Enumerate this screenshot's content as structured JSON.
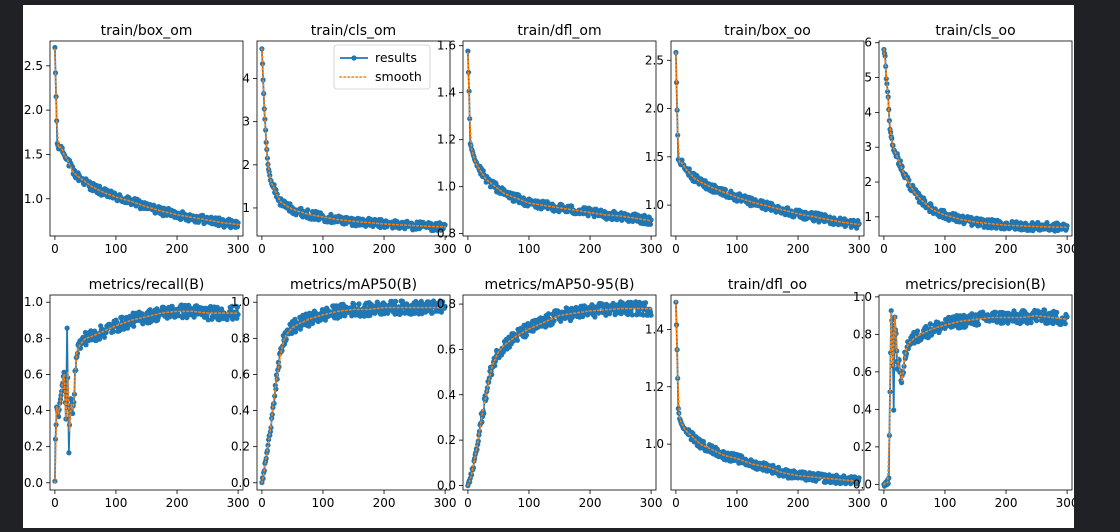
{
  "chart_data": {
    "type": "line",
    "legend": {
      "entries": [
        {
          "name": "results",
          "color": "#1f77b4",
          "style": "solid line with dot markers"
        },
        {
          "name": "smooth",
          "color": "#ff7f0e",
          "style": "dotted line"
        }
      ],
      "placement": "top-right of train/cls_om"
    },
    "colors": {
      "results": "#1f77b4",
      "smooth": "#ff7f0e"
    },
    "subplots": [
      {
        "id": "box_om",
        "title": "train/box_om",
        "xlim": [
          -8,
          308
        ],
        "ylim": [
          0.58,
          2.78
        ],
        "xticks": [
          0,
          100,
          200,
          300
        ],
        "yticks": [
          1.0,
          1.5,
          2.0,
          2.5
        ],
        "ytick_labels": [
          "1.0",
          "1.5",
          "2.0",
          "2.5"
        ],
        "points": [
          [
            0,
            2.69
          ],
          [
            2,
            2.15
          ],
          [
            4,
            1.62
          ],
          [
            7,
            1.55
          ],
          [
            10,
            1.6
          ],
          [
            15,
            1.5
          ],
          [
            20,
            1.45
          ],
          [
            30,
            1.3
          ],
          [
            40,
            1.24
          ],
          [
            50,
            1.19
          ],
          [
            60,
            1.14
          ],
          [
            80,
            1.07
          ],
          [
            100,
            1.02
          ],
          [
            125,
            0.97
          ],
          [
            150,
            0.91
          ],
          [
            175,
            0.86
          ],
          [
            200,
            0.82
          ],
          [
            225,
            0.79
          ],
          [
            250,
            0.76
          ],
          [
            275,
            0.73
          ],
          [
            300,
            0.71
          ]
        ]
      },
      {
        "id": "cls_om",
        "title": "train/cls_om",
        "xlim": [
          -8,
          308
        ],
        "ylim": [
          0.35,
          4.87
        ],
        "xticks": [
          0,
          100,
          200,
          300
        ],
        "yticks": [
          1,
          2,
          3,
          4
        ],
        "ytick_labels": [
          "1",
          "2",
          "3",
          "4"
        ],
        "points": [
          [
            0,
            4.7
          ],
          [
            2,
            4.0
          ],
          [
            4,
            3.3
          ],
          [
            7,
            2.5
          ],
          [
            10,
            2.0
          ],
          [
            15,
            1.6
          ],
          [
            20,
            1.45
          ],
          [
            25,
            1.3
          ],
          [
            30,
            1.15
          ],
          [
            40,
            1.05
          ],
          [
            50,
            0.97
          ],
          [
            60,
            0.92
          ],
          [
            80,
            0.84
          ],
          [
            100,
            0.79
          ],
          [
            125,
            0.73
          ],
          [
            150,
            0.69
          ],
          [
            175,
            0.66
          ],
          [
            200,
            0.63
          ],
          [
            225,
            0.61
          ],
          [
            250,
            0.59
          ],
          [
            275,
            0.57
          ],
          [
            300,
            0.56
          ]
        ]
      },
      {
        "id": "dfl_om",
        "title": "train/dfl_om",
        "xlim": [
          -8,
          308
        ],
        "ylim": [
          0.79,
          1.62
        ],
        "xticks": [
          0,
          100,
          200,
          300
        ],
        "yticks": [
          0.8,
          1.0,
          1.2,
          1.4,
          1.6
        ],
        "ytick_labels": [
          "0.8",
          "1.0",
          "1.2",
          "1.4",
          "1.6"
        ],
        "points": [
          [
            0,
            1.57
          ],
          [
            2,
            1.4
          ],
          [
            4,
            1.18
          ],
          [
            7,
            1.15
          ],
          [
            10,
            1.12
          ],
          [
            15,
            1.09
          ],
          [
            20,
            1.07
          ],
          [
            30,
            1.03
          ],
          [
            40,
            1.01
          ],
          [
            50,
            0.99
          ],
          [
            60,
            0.97
          ],
          [
            80,
            0.95
          ],
          [
            100,
            0.93
          ],
          [
            125,
            0.92
          ],
          [
            150,
            0.91
          ],
          [
            175,
            0.9
          ],
          [
            200,
            0.89
          ],
          [
            225,
            0.88
          ],
          [
            250,
            0.875
          ],
          [
            275,
            0.865
          ],
          [
            300,
            0.855
          ]
        ]
      },
      {
        "id": "box_oo",
        "title": "train/box_oo",
        "xlim": [
          -8,
          308
        ],
        "ylim": [
          0.68,
          2.7
        ],
        "xticks": [
          0,
          100,
          200,
          300
        ],
        "yticks": [
          1.0,
          1.5,
          2.0,
          2.5
        ],
        "ytick_labels": [
          "1.0",
          "1.5",
          "2.0",
          "2.5"
        ],
        "points": [
          [
            0,
            2.58
          ],
          [
            2,
            1.98
          ],
          [
            4,
            1.48
          ],
          [
            7,
            1.42
          ],
          [
            10,
            1.45
          ],
          [
            15,
            1.38
          ],
          [
            20,
            1.35
          ],
          [
            30,
            1.28
          ],
          [
            40,
            1.24
          ],
          [
            50,
            1.21
          ],
          [
            60,
            1.18
          ],
          [
            80,
            1.13
          ],
          [
            100,
            1.08
          ],
          [
            125,
            1.03
          ],
          [
            150,
            0.99
          ],
          [
            175,
            0.95
          ],
          [
            200,
            0.91
          ],
          [
            225,
            0.88
          ],
          [
            250,
            0.85
          ],
          [
            275,
            0.82
          ],
          [
            300,
            0.8
          ]
        ]
      },
      {
        "id": "cls_oo",
        "title": "train/cls_oo",
        "xlim": [
          -8,
          308
        ],
        "ylim": [
          0.45,
          6.05
        ],
        "xticks": [
          0,
          100,
          200,
          300
        ],
        "yticks": [
          1,
          2,
          3,
          4,
          5,
          6
        ],
        "ytick_labels": [
          "1",
          "2",
          "3",
          "4",
          "5",
          "6"
        ],
        "points": [
          [
            0,
            5.82
          ],
          [
            2,
            5.6
          ],
          [
            4,
            5.0
          ],
          [
            7,
            4.4
          ],
          [
            10,
            3.5
          ],
          [
            15,
            3.0
          ],
          [
            20,
            2.8
          ],
          [
            25,
            2.6
          ],
          [
            30,
            2.35
          ],
          [
            40,
            2.0
          ],
          [
            50,
            1.7
          ],
          [
            60,
            1.5
          ],
          [
            80,
            1.2
          ],
          [
            100,
            1.05
          ],
          [
            125,
            0.93
          ],
          [
            150,
            0.85
          ],
          [
            175,
            0.8
          ],
          [
            200,
            0.76
          ],
          [
            225,
            0.74
          ],
          [
            250,
            0.72
          ],
          [
            275,
            0.71
          ],
          [
            300,
            0.7
          ]
        ]
      },
      {
        "id": "recall",
        "title": "metrics/recall(B)",
        "xlim": [
          -8,
          308
        ],
        "ylim": [
          -0.04,
          1.04
        ],
        "xticks": [
          0,
          100,
          200,
          300
        ],
        "yticks": [
          0.0,
          0.2,
          0.4,
          0.6,
          0.8,
          1.0
        ],
        "ytick_labels": [
          "0.0",
          "0.2",
          "0.4",
          "0.6",
          "0.8",
          "1.0"
        ],
        "points": [
          [
            0,
            0.0
          ],
          [
            1,
            0.25
          ],
          [
            3,
            0.42
          ],
          [
            6,
            0.38
          ],
          [
            9,
            0.45
          ],
          [
            12,
            0.55
          ],
          [
            15,
            0.6
          ],
          [
            18,
            0.35
          ],
          [
            20,
            0.82
          ],
          [
            23,
            0.2
          ],
          [
            26,
            0.45
          ],
          [
            30,
            0.4
          ],
          [
            35,
            0.72
          ],
          [
            40,
            0.76
          ],
          [
            50,
            0.8
          ],
          [
            60,
            0.81
          ],
          [
            80,
            0.84
          ],
          [
            100,
            0.87
          ],
          [
            125,
            0.9
          ],
          [
            150,
            0.92
          ],
          [
            175,
            0.94
          ],
          [
            200,
            0.95
          ],
          [
            225,
            0.95
          ],
          [
            250,
            0.94
          ],
          [
            275,
            0.94
          ],
          [
            300,
            0.94
          ]
        ]
      },
      {
        "id": "map50",
        "title": "metrics/mAP50(B)",
        "xlim": [
          -8,
          308
        ],
        "ylim": [
          -0.04,
          1.04
        ],
        "xticks": [
          0,
          100,
          200,
          300
        ],
        "yticks": [
          0.0,
          0.2,
          0.4,
          0.6,
          0.8,
          1.0
        ],
        "ytick_labels": [
          "0.0",
          "0.2",
          "0.4",
          "0.6",
          "0.8",
          "1.0"
        ],
        "points": [
          [
            0,
            0.0
          ],
          [
            3,
            0.05
          ],
          [
            6,
            0.12
          ],
          [
            9,
            0.18
          ],
          [
            12,
            0.25
          ],
          [
            15,
            0.32
          ],
          [
            18,
            0.42
          ],
          [
            21,
            0.5
          ],
          [
            24,
            0.57
          ],
          [
            27,
            0.63
          ],
          [
            30,
            0.7
          ],
          [
            35,
            0.78
          ],
          [
            40,
            0.82
          ],
          [
            50,
            0.86
          ],
          [
            60,
            0.88
          ],
          [
            80,
            0.91
          ],
          [
            100,
            0.93
          ],
          [
            125,
            0.95
          ],
          [
            150,
            0.96
          ],
          [
            175,
            0.96
          ],
          [
            200,
            0.97
          ],
          [
            250,
            0.97
          ],
          [
            300,
            0.97
          ]
        ]
      },
      {
        "id": "map5095",
        "title": "metrics/mAP50-95(B)",
        "xlim": [
          -8,
          308
        ],
        "ylim": [
          -0.02,
          0.84
        ],
        "xticks": [
          0,
          100,
          200,
          300
        ],
        "yticks": [
          0.0,
          0.2,
          0.4,
          0.6,
          0.8
        ],
        "ytick_labels": [
          "0.0",
          "0.2",
          "0.4",
          "0.6",
          "0.8"
        ],
        "points": [
          [
            0,
            0.0
          ],
          [
            3,
            0.02
          ],
          [
            6,
            0.05
          ],
          [
            9,
            0.09
          ],
          [
            12,
            0.13
          ],
          [
            15,
            0.17
          ],
          [
            18,
            0.22
          ],
          [
            21,
            0.27
          ],
          [
            24,
            0.32
          ],
          [
            27,
            0.36
          ],
          [
            30,
            0.4
          ],
          [
            35,
            0.47
          ],
          [
            40,
            0.53
          ],
          [
            50,
            0.59
          ],
          [
            60,
            0.62
          ],
          [
            80,
            0.66
          ],
          [
            100,
            0.69
          ],
          [
            125,
            0.72
          ],
          [
            150,
            0.75
          ],
          [
            175,
            0.76
          ],
          [
            200,
            0.77
          ],
          [
            250,
            0.78
          ],
          [
            300,
            0.78
          ]
        ]
      },
      {
        "id": "dfl_oo",
        "title": "train/dfl_oo",
        "xlim": [
          -8,
          308
        ],
        "ylim": [
          0.84,
          1.52
        ],
        "xticks": [
          0,
          100,
          200,
          300
        ],
        "yticks": [
          1.0,
          1.2,
          1.4
        ],
        "ytick_labels": [
          "1.0",
          "1.2",
          "1.4"
        ],
        "points": [
          [
            0,
            1.5
          ],
          [
            2,
            1.33
          ],
          [
            4,
            1.12
          ],
          [
            7,
            1.08
          ],
          [
            10,
            1.07
          ],
          [
            15,
            1.05
          ],
          [
            20,
            1.04
          ],
          [
            30,
            1.02
          ],
          [
            40,
            1.0
          ],
          [
            50,
            0.99
          ],
          [
            60,
            0.98
          ],
          [
            80,
            0.96
          ],
          [
            100,
            0.95
          ],
          [
            125,
            0.93
          ],
          [
            150,
            0.92
          ],
          [
            175,
            0.9
          ],
          [
            200,
            0.89
          ],
          [
            225,
            0.885
          ],
          [
            250,
            0.88
          ],
          [
            275,
            0.875
          ],
          [
            300,
            0.87
          ]
        ]
      },
      {
        "id": "precision",
        "title": "metrics/precision(B)",
        "xlim": [
          -8,
          308
        ],
        "ylim": [
          -0.03,
          1.01
        ],
        "xticks": [
          0,
          100,
          200,
          300
        ],
        "yticks": [
          0.0,
          0.2,
          0.4,
          0.6,
          0.8,
          1.0
        ],
        "ytick_labels": [
          "0.0",
          "0.2",
          "0.4",
          "0.6",
          "0.8",
          "1.0"
        ],
        "points": [
          [
            0,
            0.0
          ],
          [
            3,
            0.01
          ],
          [
            6,
            0.01
          ],
          [
            8,
            0.02
          ],
          [
            10,
            0.5
          ],
          [
            12,
            0.92
          ],
          [
            14,
            0.85
          ],
          [
            16,
            0.4
          ],
          [
            18,
            0.9
          ],
          [
            22,
            0.65
          ],
          [
            26,
            0.62
          ],
          [
            30,
            0.55
          ],
          [
            35,
            0.7
          ],
          [
            40,
            0.75
          ],
          [
            50,
            0.78
          ],
          [
            60,
            0.8
          ],
          [
            80,
            0.83
          ],
          [
            100,
            0.85
          ],
          [
            125,
            0.87
          ],
          [
            150,
            0.88
          ],
          [
            175,
            0.89
          ],
          [
            200,
            0.89
          ],
          [
            225,
            0.89
          ],
          [
            250,
            0.9
          ],
          [
            275,
            0.89
          ],
          [
            300,
            0.88
          ]
        ]
      }
    ]
  }
}
